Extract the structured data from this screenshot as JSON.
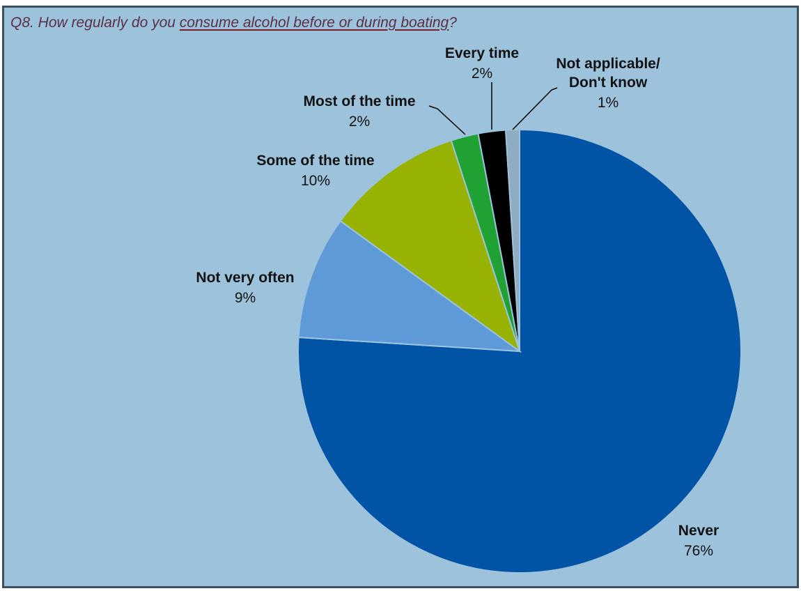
{
  "title": {
    "prefix": "Q8. How regularly do you ",
    "emphasis": "consume alcohol before or during boating",
    "suffix": "?"
  },
  "chart_data": {
    "type": "pie",
    "title": "Q8. How regularly do you consume alcohol before or during boating?",
    "slices": [
      {
        "name": "Never",
        "value": 76,
        "label": "76%",
        "color": "#0053a5"
      },
      {
        "name": "Not very often",
        "value": 9,
        "label": "9%",
        "color": "#5e9ad8"
      },
      {
        "name": "Some of the time",
        "value": 10,
        "label": "10%",
        "color": "#98b204"
      },
      {
        "name": "Most of the time",
        "value": 2,
        "label": "2%",
        "color": "#1fa134"
      },
      {
        "name": "Every time",
        "value": 2,
        "label": "2%",
        "color": "#000000"
      },
      {
        "name": "Not applicable/ Don't know",
        "value": 1,
        "label": "1%",
        "color": "#8facc2",
        "name_lines": [
          "Not applicable/",
          "Don't know"
        ]
      }
    ],
    "start": "12 o'clock",
    "direction": "clockwise",
    "legend": "none",
    "data_labels": "outside, category name and percent"
  }
}
